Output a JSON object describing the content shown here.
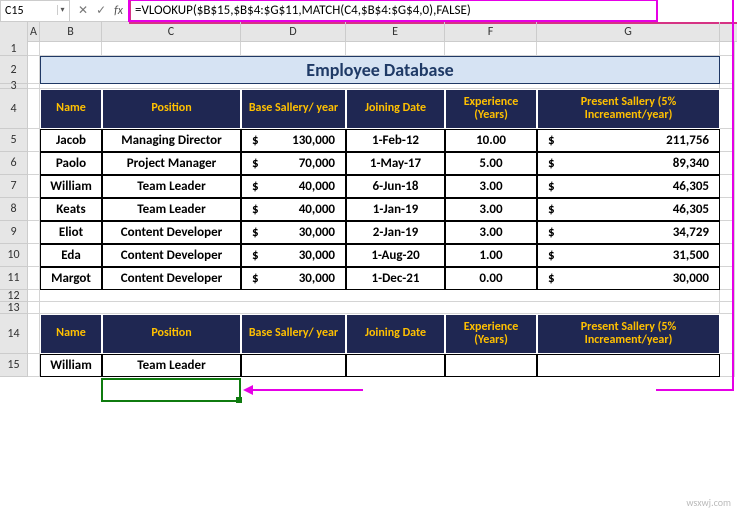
{
  "nameBox": "C15",
  "formula": "=VLOOKUP($B$15,$B$4:$G$11,MATCH(C4,$B$4:$G$4,0),FALSE)",
  "columns": [
    "A",
    "B",
    "C",
    "D",
    "E",
    "F",
    "G"
  ],
  "rowNumbers": [
    1,
    2,
    3,
    4,
    5,
    6,
    7,
    8,
    9,
    10,
    11,
    12,
    13,
    14,
    15
  ],
  "title": "Employee Database",
  "headers": {
    "name": "Name",
    "position": "Position",
    "base": "Base Sallery/ year",
    "joining": "Joining Date",
    "exp": "Experience (Years)",
    "present": "Present Sallery (5% Increament/year)"
  },
  "rows": [
    {
      "name": "Jacob",
      "position": "Managing Director",
      "base": "130,000",
      "joining": "1-Feb-12",
      "exp": "10.00",
      "present": "211,756"
    },
    {
      "name": "Paolo",
      "position": "Project Manager",
      "base": "70,000",
      "joining": "1-May-17",
      "exp": "5.00",
      "present": "89,340"
    },
    {
      "name": "William",
      "position": "Team Leader",
      "base": "40,000",
      "joining": "6-Jun-18",
      "exp": "3.00",
      "present": "46,305"
    },
    {
      "name": "Keats",
      "position": "Team Leader",
      "base": "40,000",
      "joining": "1-Jan-19",
      "exp": "3.00",
      "present": "46,305"
    },
    {
      "name": "Eliot",
      "position": "Content Developer",
      "base": "30,000",
      "joining": "2-Jan-19",
      "exp": "3.00",
      "present": "34,729"
    },
    {
      "name": "Eda",
      "position": "Content Developer",
      "base": "30,000",
      "joining": "1-Aug-20",
      "exp": "1.00",
      "present": "31,500"
    },
    {
      "name": "Margot",
      "position": "Content Developer",
      "base": "30,000",
      "joining": "1-Dec-21",
      "exp": "0.00",
      "present": "30,000"
    }
  ],
  "lookup": {
    "name": "William",
    "position": "Team Leader"
  },
  "watermark": "wsxwj.com",
  "colors": {
    "headerBg": "#1f2752",
    "headerText": "#ffc000",
    "titleBg": "#d6e3f3",
    "titleText": "#1f3a66",
    "selection": "#0f7b0f",
    "highlight": "#e600e6"
  }
}
